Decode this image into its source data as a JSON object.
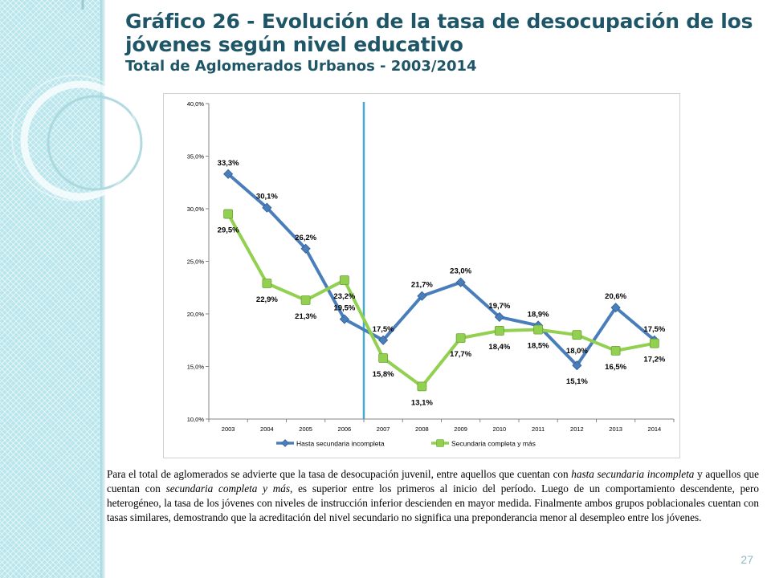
{
  "slide": {
    "title": "Gráfico 26 - Evolución de la tasa de desocupación de los jóvenes según nivel educativo",
    "subtitle": "Total de Aglomerados Urbanos - 2003/2014",
    "page_number": "27",
    "paragraph": [
      {
        "text": "Para el total de aglomerados se advierte que la tasa de desocupación juvenil, entre aquellos que cuentan con ",
        "italic": false
      },
      {
        "text": "hasta secundaria incompleta",
        "italic": true
      },
      {
        "text": " y aquellos que cuentan con ",
        "italic": false
      },
      {
        "text": "secundaria completa y más",
        "italic": true
      },
      {
        "text": ", es superior entre los primeros al inicio del período. Luego de un comportamiento descendente, pero heterogéneo, la tasa de los jóvenes con niveles de instrucción inferior descienden en mayor medida. Finalmente ambos grupos poblacionales cuentan con tasas similares, demostrando que la acreditación del nivel secundario no significa una preponderancia menor al desempleo entre los jóvenes.",
        "italic": false
      }
    ],
    "colors": {
      "title": "#1e5667",
      "accent_band": "#b9e6ec"
    }
  },
  "chart_data": {
    "type": "line",
    "title": "",
    "xlabel": "",
    "ylabel": "",
    "categories": [
      "2003",
      "2004",
      "2005",
      "2006",
      "2007",
      "2008",
      "2009",
      "2010",
      "2011",
      "2012",
      "2013",
      "2014"
    ],
    "ylim": [
      10,
      40
    ],
    "yticks": [
      10,
      15,
      20,
      25,
      30,
      35,
      40
    ],
    "ytick_labels": [
      "10,0%",
      "15,0%",
      "20,0%",
      "25,0%",
      "30,0%",
      "35,0%",
      "40,0%"
    ],
    "grid": false,
    "legend_position": "bottom",
    "vertical_reference_line_category": "2006",
    "series": [
      {
        "name": "Hasta secundaria incompleta",
        "values": [
          33.3,
          30.1,
          26.2,
          19.5,
          17.5,
          21.7,
          23.0,
          19.7,
          18.9,
          15.1,
          20.6,
          17.5
        ],
        "labels": [
          "33,3%",
          "30,1%",
          "26,2%",
          "19,5%",
          "17,5%",
          "21,7%",
          "23,0%",
          "19,7%",
          "18,9%",
          "15,1%",
          "20,6%",
          "17,5%"
        ],
        "label_pos": [
          "above",
          "above",
          "above",
          "above",
          "above",
          "above",
          "above",
          "above",
          "above",
          "below",
          "above",
          "above"
        ],
        "marker": "diamond",
        "color": "#4a7ebb"
      },
      {
        "name": "Secundaria completa y más",
        "values": [
          29.5,
          22.9,
          21.3,
          23.2,
          15.8,
          13.1,
          17.7,
          18.4,
          18.5,
          18.0,
          16.5,
          17.2
        ],
        "labels": [
          "29,5%",
          "22,9%",
          "21,3%",
          "23,2%",
          "15,8%",
          "13,1%",
          "17,7%",
          "18,4%",
          "18,5%",
          "18,0%",
          "16,5%",
          "17,2%"
        ],
        "label_pos": [
          "below",
          "below",
          "below",
          "below",
          "below",
          "below",
          "below",
          "below",
          "below",
          "below",
          "below",
          "below"
        ],
        "marker": "square",
        "color": "#92d050"
      }
    ]
  }
}
